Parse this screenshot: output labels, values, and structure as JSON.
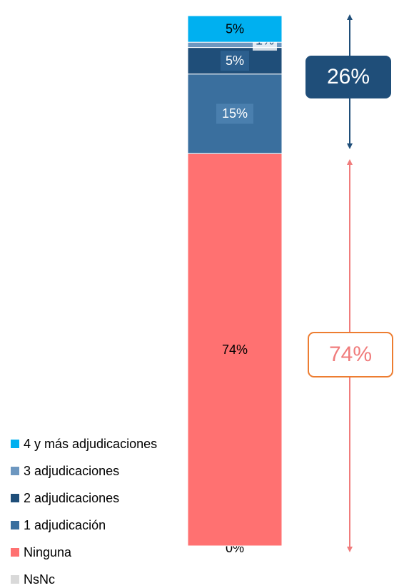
{
  "chart_data": {
    "type": "stacked-bar",
    "ylim": [
      0,
      100
    ],
    "series": [
      {
        "name": "4 y más adjudicaciones",
        "color": "#00b0f0",
        "values": [
          5
        ],
        "value_labels": [
          "5%"
        ]
      },
      {
        "name": "3 adjudicaciones",
        "color": "#6d97c0",
        "values": [
          1
        ],
        "value_labels": [
          "1%"
        ]
      },
      {
        "name": "2 adjudicaciones",
        "color": "#1f4e79",
        "values": [
          5
        ],
        "value_labels": [
          "5%"
        ]
      },
      {
        "name": "1 adjudicación",
        "color": "#3a6f9e",
        "values": [
          15
        ],
        "value_labels": [
          "15%"
        ]
      },
      {
        "name": "Ninguna",
        "color": "#ff7171",
        "values": [
          74
        ],
        "value_labels": [
          "74%"
        ]
      },
      {
        "name": "NsNc",
        "color": "#d9d9d9",
        "values": [
          0
        ],
        "value_labels": [
          "0%"
        ]
      }
    ],
    "annotations": [
      "26%",
      "74%"
    ]
  }
}
